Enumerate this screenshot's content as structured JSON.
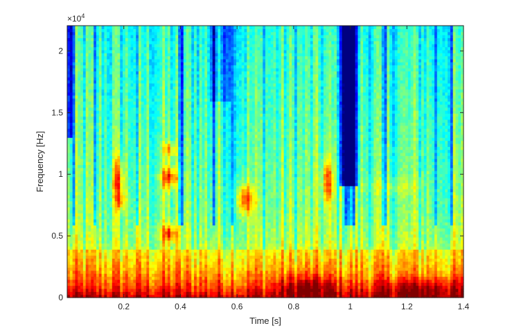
{
  "chart_data": {
    "type": "heatmap",
    "title": "",
    "xlabel": "Time [s]",
    "ylabel": "Frequency [Hz]",
    "y_exponent_label": "×10",
    "y_exponent_power": "4",
    "xlim": [
      0,
      1.4
    ],
    "ylim": [
      0,
      22050
    ],
    "x_ticks": [
      0.2,
      0.4,
      0.6,
      0.8,
      1,
      1.2,
      1.4
    ],
    "x_tick_labels": [
      "0.2",
      "0.4",
      "0.6",
      "0.8",
      "1",
      "1.2",
      "1.4"
    ],
    "y_ticks": [
      0,
      5000,
      10000,
      15000,
      20000
    ],
    "y_tick_labels": [
      "0",
      "0.5",
      "1",
      "1.5",
      "2"
    ],
    "colormap": "jet",
    "colormap_colors": [
      "#00008f",
      "#0000ff",
      "#00ffff",
      "#ffff00",
      "#ff0000",
      "#800000"
    ],
    "grid": false,
    "legend": "none",
    "spectral_features": {
      "low_freq_energy_band_hz": [
        0,
        4000
      ],
      "formant_bursts": [
        {
          "time_s": 0.18,
          "freq_hz": [
            7000,
            13000
          ]
        },
        {
          "time_s": 0.36,
          "freq_hz": [
            4500,
            6500
          ]
        },
        {
          "time_s": 0.36,
          "freq_hz": [
            9000,
            10500
          ]
        },
        {
          "time_s": 0.36,
          "freq_hz": [
            11500,
            12500
          ]
        },
        {
          "time_s": 0.63,
          "freq_hz": [
            6500,
            9000
          ]
        },
        {
          "time_s": 0.92,
          "freq_hz": [
            7000,
            12000
          ]
        }
      ],
      "quiet_regions": [
        {
          "time_s": [
            0.0,
            0.02
          ],
          "freq_hz": [
            13000,
            22050
          ]
        },
        {
          "time_s": [
            0.98,
            1.02
          ],
          "freq_hz": [
            9000,
            22050
          ]
        }
      ]
    }
  }
}
